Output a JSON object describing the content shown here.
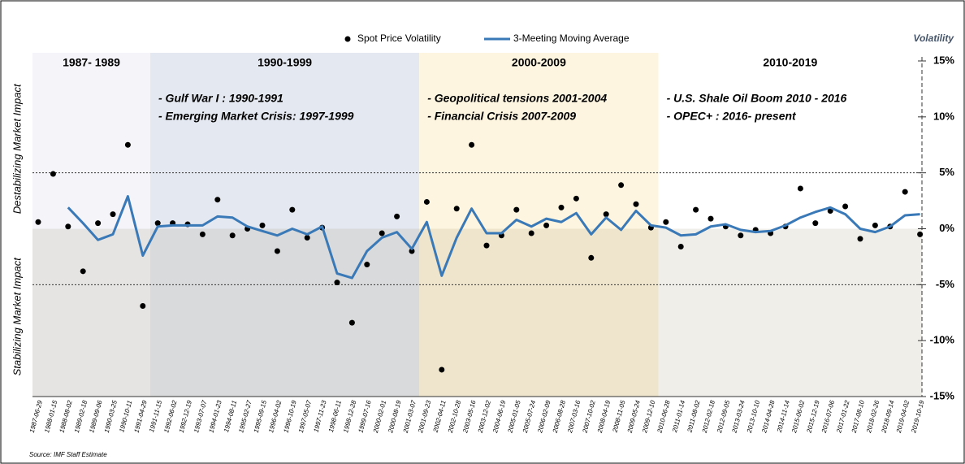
{
  "chart_data": {
    "type": "scatter-line",
    "legend": {
      "position": "top"
    },
    "y_label": "Volatility",
    "side_labels": [
      "Destabilizing Market Impact",
      "Stabilizing Market Impact"
    ],
    "source_label": "Source:",
    "source": "IMF Staff Estimate",
    "ylim": [
      -15,
      15
    ],
    "yticks": [
      {
        "value": 15,
        "label": "15%"
      },
      {
        "value": 10,
        "label": "10%"
      },
      {
        "value": 5,
        "label": "5%"
      },
      {
        "value": 0,
        "label": "0%"
      },
      {
        "value": -5,
        "label": "-5%"
      },
      {
        "value": -10,
        "label": "-10%"
      },
      {
        "value": -15,
        "label": "-15%"
      }
    ],
    "thresholds": [
      5,
      -5
    ],
    "regions": [
      {
        "label": "1987- 1989",
        "start": "1987-06-29",
        "color": "#f4f4f9",
        "notes": []
      },
      {
        "label": "1990-1999",
        "start": "1991-11-15",
        "color": "#e4e8f0",
        "notes": [
          "- Gulf War I :  1990-1991",
          "- Emerging Market Crisis: 1997-1999"
        ]
      },
      {
        "label": "2000-2009",
        "start": "2001-09-23",
        "color": "#fdf5df",
        "notes": [
          "- Geopolitical tensions 2001-2004",
          "- Financial Crisis 2007-2009"
        ]
      },
      {
        "label": "2010-2019",
        "start": "2010-06-28",
        "color": "#ffffff",
        "notes": [
          "- U.S. Shale Oil Boom 2010 - 2016",
          "- OPEC+ : 2016- present"
        ]
      }
    ],
    "categories": [
      "1987-06-29",
      "1988-01-15",
      "1988-08-02",
      "1989-02-18",
      "1989-09-06",
      "1990-03-25",
      "1990-10-11",
      "1991-04-29",
      "1991-11-15",
      "1992-06-02",
      "1992-12-19",
      "1993-07-07",
      "1994-01-23",
      "1994-08-11",
      "1995-02-27",
      "1995-09-15",
      "1996-04-02",
      "1996-10-19",
      "1997-05-07",
      "1997-11-23",
      "1998-06-11",
      "1998-12-28",
      "1999-07-16",
      "2000-02-01",
      "2000-08-19",
      "2001-03-07",
      "2001-09-23",
      "2002-04-11",
      "2002-10-28",
      "2003-05-16",
      "2003-12-02",
      "2004-06-19",
      "2005-01-05",
      "2005-07-24",
      "2006-02-09",
      "2006-08-28",
      "2007-03-16",
      "2007-10-02",
      "2008-04-19",
      "2008-11-05",
      "2009-05-24",
      "2009-12-10",
      "2010-06-28",
      "2011-01-14",
      "2011-08-02",
      "2012-02-18",
      "2012-09-05",
      "2013-03-24",
      "2013-10-10",
      "2014-04-28",
      "2014-11-14",
      "2015-06-02",
      "2015-12-19",
      "2016-07-06",
      "2017-01-22",
      "2017-08-10",
      "2018-02-26",
      "2018-09-14",
      "2019-04-02",
      "2019-10-19"
    ],
    "series": [
      {
        "name": "Spot Price Volatility",
        "kind": "points",
        "color": "#000000",
        "values": [
          0.6,
          4.9,
          0.2,
          -3.8,
          0.5,
          1.3,
          7.5,
          -6.9,
          0.5,
          0.5,
          0.4,
          -0.5,
          2.6,
          -0.6,
          0.0,
          0.3,
          -2.0,
          1.7,
          -0.8,
          0.1,
          -4.8,
          -8.4,
          -3.2,
          -0.4,
          1.1,
          -2.0,
          2.4,
          -12.6,
          1.8,
          7.5,
          -1.5,
          -0.6,
          1.7,
          -0.4,
          0.3,
          1.9,
          2.7,
          -2.6,
          1.3,
          3.9,
          2.2,
          0.1,
          0.6,
          -1.6,
          1.7,
          0.9,
          0.2,
          -0.6,
          -0.1,
          -0.4,
          0.2,
          3.6,
          0.5,
          1.6,
          2.0,
          -0.9,
          0.3,
          0.2,
          3.3,
          -0.5
        ]
      },
      {
        "name": "3-Meeting Moving Average",
        "kind": "line",
        "color": "#3a79b8",
        "values": [
          null,
          null,
          1.9,
          0.5,
          -1.0,
          -0.5,
          2.9,
          -2.4,
          0.2,
          0.3,
          0.3,
          0.3,
          1.1,
          1.0,
          0.2,
          -0.2,
          -0.6,
          0.0,
          -0.5,
          0.2,
          -4.0,
          -4.4,
          -2.0,
          -0.8,
          -0.3,
          -1.8,
          0.6,
          -4.2,
          -0.8,
          1.8,
          -0.4,
          -0.4,
          0.8,
          0.2,
          0.9,
          0.6,
          1.4,
          -0.5,
          1.0,
          -0.1,
          1.6,
          0.3,
          0.1,
          -0.6,
          -0.5,
          0.2,
          0.4,
          -0.1,
          -0.3,
          -0.2,
          0.3,
          1.0,
          1.5,
          1.9,
          1.3,
          0.0,
          -0.3,
          0.2,
          1.2,
          1.3
        ]
      }
    ]
  }
}
